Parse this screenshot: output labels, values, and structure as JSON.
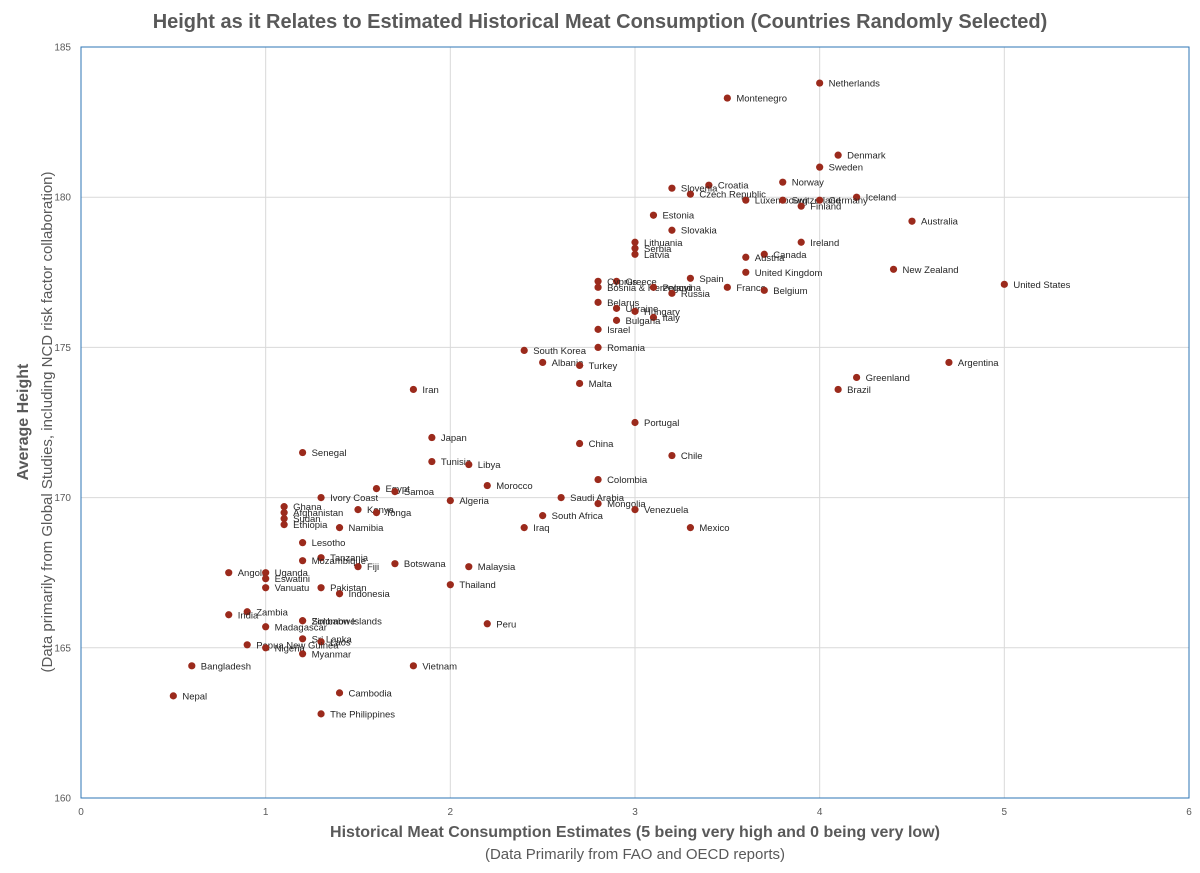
{
  "chart_data": {
    "type": "scatter",
    "title": "Height as it Relates to Estimated Historical Meat Consumption (Countries Randomly Selected)",
    "xlabel": "Historical Meat Consumption Estimates (5 being very high and 0 being very low)",
    "xlabel_sub": "(Data Primarily from FAO and OECD reports)",
    "ylabel": "Average Height",
    "ylabel_sub": "(Data primarily from Global Studies, including NCD risk factor collaboration)",
    "xlim": [
      0,
      6
    ],
    "ylim": [
      160,
      185
    ],
    "x_ticks": [
      "0",
      "1",
      "2",
      "3",
      "4",
      "5",
      "6"
    ],
    "y_ticks": [
      "160",
      "165",
      "170",
      "175",
      "180",
      "185"
    ],
    "grid": true,
    "marker_color": "#9b2a1c",
    "points": [
      {
        "label": "Netherlands",
        "x": 4.0,
        "y": 183.8
      },
      {
        "label": "Montenegro",
        "x": 3.5,
        "y": 183.3
      },
      {
        "label": "Denmark",
        "x": 4.1,
        "y": 181.4
      },
      {
        "label": "Sweden",
        "x": 4.0,
        "y": 181.0
      },
      {
        "label": "Norway",
        "x": 3.8,
        "y": 180.5
      },
      {
        "label": "Croatia",
        "x": 3.4,
        "y": 180.4
      },
      {
        "label": "Slovenia",
        "x": 3.2,
        "y": 180.3
      },
      {
        "label": "Czech Republic",
        "x": 3.3,
        "y": 180.1
      },
      {
        "label": "Iceland",
        "x": 4.2,
        "y": 180.0
      },
      {
        "label": "Luxembourg",
        "x": 3.6,
        "y": 179.9
      },
      {
        "label": "Switzerland",
        "x": 3.8,
        "y": 179.9
      },
      {
        "label": "Germany",
        "x": 4.0,
        "y": 179.9
      },
      {
        "label": "Finland",
        "x": 3.9,
        "y": 179.7
      },
      {
        "label": "Estonia",
        "x": 3.1,
        "y": 179.4
      },
      {
        "label": "Australia",
        "x": 4.5,
        "y": 179.2
      },
      {
        "label": "Slovakia",
        "x": 3.2,
        "y": 178.9
      },
      {
        "label": "Lithuania",
        "x": 3.0,
        "y": 178.5
      },
      {
        "label": "Ireland",
        "x": 3.9,
        "y": 178.5
      },
      {
        "label": "Serbia",
        "x": 3.0,
        "y": 178.3
      },
      {
        "label": "Latvia",
        "x": 3.0,
        "y": 178.1
      },
      {
        "label": "Canada",
        "x": 3.7,
        "y": 178.1
      },
      {
        "label": "Austria",
        "x": 3.6,
        "y": 178.0
      },
      {
        "label": "New Zealand",
        "x": 4.4,
        "y": 177.6
      },
      {
        "label": "United Kingdom",
        "x": 3.6,
        "y": 177.5
      },
      {
        "label": "Spain",
        "x": 3.3,
        "y": 177.3
      },
      {
        "label": "Greece",
        "x": 2.9,
        "y": 177.2
      },
      {
        "label": "Cyprus",
        "x": 2.8,
        "y": 177.2
      },
      {
        "label": "United States",
        "x": 5.0,
        "y": 177.1
      },
      {
        "label": "France",
        "x": 3.5,
        "y": 177.0
      },
      {
        "label": "Bosnia & Herzegovina",
        "x": 2.8,
        "y": 177.0
      },
      {
        "label": "Poland",
        "x": 3.1,
        "y": 177.0
      },
      {
        "label": "Belgium",
        "x": 3.7,
        "y": 176.9
      },
      {
        "label": "Russia",
        "x": 3.2,
        "y": 176.8
      },
      {
        "label": "Belarus",
        "x": 2.8,
        "y": 176.5
      },
      {
        "label": "Ukraine",
        "x": 2.9,
        "y": 176.3
      },
      {
        "label": "Hungary",
        "x": 3.0,
        "y": 176.2
      },
      {
        "label": "Italy",
        "x": 3.1,
        "y": 176.0
      },
      {
        "label": "Bulgaria",
        "x": 2.9,
        "y": 175.9
      },
      {
        "label": "Israel",
        "x": 2.8,
        "y": 175.6
      },
      {
        "label": "Romania",
        "x": 2.8,
        "y": 175.0
      },
      {
        "label": "South Korea",
        "x": 2.4,
        "y": 174.9
      },
      {
        "label": "Albania",
        "x": 2.5,
        "y": 174.5
      },
      {
        "label": "Argentina",
        "x": 4.7,
        "y": 174.5
      },
      {
        "label": "Turkey",
        "x": 2.7,
        "y": 174.4
      },
      {
        "label": "Greenland",
        "x": 4.2,
        "y": 174.0
      },
      {
        "label": "Malta",
        "x": 2.7,
        "y": 173.8
      },
      {
        "label": "Iran",
        "x": 1.8,
        "y": 173.6
      },
      {
        "label": "Brazil",
        "x": 4.1,
        "y": 173.6
      },
      {
        "label": "Portugal",
        "x": 3.0,
        "y": 172.5
      },
      {
        "label": "Japan",
        "x": 1.9,
        "y": 172.0
      },
      {
        "label": "China",
        "x": 2.7,
        "y": 171.8
      },
      {
        "label": "Senegal",
        "x": 1.2,
        "y": 171.5
      },
      {
        "label": "Chile",
        "x": 3.2,
        "y": 171.4
      },
      {
        "label": "Tunisia",
        "x": 1.9,
        "y": 171.2
      },
      {
        "label": "Libya",
        "x": 2.1,
        "y": 171.1
      },
      {
        "label": "Colombia",
        "x": 2.8,
        "y": 170.6
      },
      {
        "label": "Morocco",
        "x": 2.2,
        "y": 170.4
      },
      {
        "label": "Egypt",
        "x": 1.6,
        "y": 170.3
      },
      {
        "label": "Samoa",
        "x": 1.7,
        "y": 170.2
      },
      {
        "label": "Ivory Coast",
        "x": 1.3,
        "y": 170.0
      },
      {
        "label": "Saudi Arabia",
        "x": 2.6,
        "y": 170.0
      },
      {
        "label": "Algeria",
        "x": 2.0,
        "y": 169.9
      },
      {
        "label": "Mongolia",
        "x": 2.8,
        "y": 169.8
      },
      {
        "label": "Ghana",
        "x": 1.1,
        "y": 169.7
      },
      {
        "label": "Venezuela",
        "x": 3.0,
        "y": 169.6
      },
      {
        "label": "Kenya",
        "x": 1.5,
        "y": 169.6
      },
      {
        "label": "Afghanistan",
        "x": 1.1,
        "y": 169.5
      },
      {
        "label": "Tonga",
        "x": 1.6,
        "y": 169.5
      },
      {
        "label": "South Africa",
        "x": 2.5,
        "y": 169.4
      },
      {
        "label": "Sudan",
        "x": 1.1,
        "y": 169.3
      },
      {
        "label": "Ethiopia",
        "x": 1.1,
        "y": 169.1
      },
      {
        "label": "Namibia",
        "x": 1.4,
        "y": 169.0
      },
      {
        "label": "Iraq",
        "x": 2.4,
        "y": 169.0
      },
      {
        "label": "Mexico",
        "x": 3.3,
        "y": 169.0
      },
      {
        "label": "Lesotho",
        "x": 1.2,
        "y": 168.5
      },
      {
        "label": "Tanzania",
        "x": 1.3,
        "y": 168.0
      },
      {
        "label": "Mozambique",
        "x": 1.2,
        "y": 167.9
      },
      {
        "label": "Botswana",
        "x": 1.7,
        "y": 167.8
      },
      {
        "label": "Fiji",
        "x": 1.5,
        "y": 167.7
      },
      {
        "label": "Malaysia",
        "x": 2.1,
        "y": 167.7
      },
      {
        "label": "Angola",
        "x": 0.8,
        "y": 167.5
      },
      {
        "label": "Uganda",
        "x": 1.0,
        "y": 167.5
      },
      {
        "label": "Eswatini",
        "x": 1.0,
        "y": 167.3
      },
      {
        "label": "Thailand",
        "x": 2.0,
        "y": 167.1
      },
      {
        "label": "Vanuatu",
        "x": 1.0,
        "y": 167.0
      },
      {
        "label": "Pakistan",
        "x": 1.3,
        "y": 167.0
      },
      {
        "label": "Indonesia",
        "x": 1.4,
        "y": 166.8
      },
      {
        "label": "Zambia",
        "x": 0.9,
        "y": 166.2
      },
      {
        "label": "India",
        "x": 0.8,
        "y": 166.1
      },
      {
        "label": "Solomon Islands",
        "x": 1.2,
        "y": 165.9
      },
      {
        "label": "Zimbabwe",
        "x": 1.2,
        "y": 165.9
      },
      {
        "label": "Peru",
        "x": 2.2,
        "y": 165.8
      },
      {
        "label": "Madagascar",
        "x": 1.0,
        "y": 165.7
      },
      {
        "label": "Sri Lanka",
        "x": 1.2,
        "y": 165.3
      },
      {
        "label": "Laos",
        "x": 1.3,
        "y": 165.2
      },
      {
        "label": "Papua New Guinea",
        "x": 0.9,
        "y": 165.1
      },
      {
        "label": "Nigeria",
        "x": 1.0,
        "y": 165.0
      },
      {
        "label": "Myanmar",
        "x": 1.2,
        "y": 164.8
      },
      {
        "label": "Bangladesh",
        "x": 0.6,
        "y": 164.4
      },
      {
        "label": "Vietnam",
        "x": 1.8,
        "y": 164.4
      },
      {
        "label": "Cambodia",
        "x": 1.4,
        "y": 163.5
      },
      {
        "label": "Nepal",
        "x": 0.5,
        "y": 163.4
      },
      {
        "label": "The Philippines",
        "x": 1.3,
        "y": 162.8
      }
    ]
  }
}
